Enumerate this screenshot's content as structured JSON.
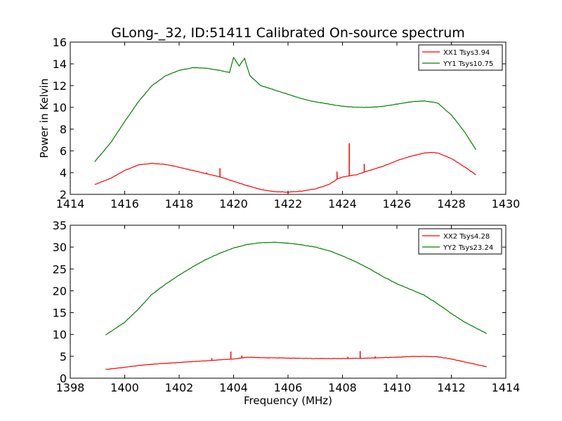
{
  "title": "GLong-_32, ID:51411 Calibrated On-source spectrum",
  "colors": {
    "xx": "#ff0000",
    "yy": "#008000"
  },
  "chart_data": [
    {
      "type": "line",
      "ylabel": "Power in Kelvin",
      "xlabel": "",
      "xlim": [
        1414,
        1430
      ],
      "ylim": [
        2,
        16
      ],
      "xticks": [
        "1414",
        "1416",
        "1418",
        "1420",
        "1422",
        "1424",
        "1426",
        "1428",
        "1430"
      ],
      "yticks": [
        "2",
        "4",
        "6",
        "8",
        "10",
        "12",
        "14",
        "16"
      ],
      "legend_position": "top-right",
      "series": [
        {
          "name": "XX1 Tsys3.94",
          "color": "#ff0000",
          "x": [
            1414.9,
            1415.5,
            1416.0,
            1416.5,
            1417.0,
            1417.5,
            1418.0,
            1418.5,
            1419.0,
            1419.5,
            1420.0,
            1420.5,
            1421.0,
            1421.5,
            1422.0,
            1422.5,
            1423.0,
            1423.5,
            1423.8,
            1424.0,
            1424.5,
            1425.0,
            1425.5,
            1426.0,
            1426.5,
            1427.0,
            1427.3,
            1427.5,
            1428.0,
            1428.5,
            1428.9
          ],
          "y": [
            2.9,
            3.5,
            4.2,
            4.7,
            4.85,
            4.75,
            4.5,
            4.2,
            3.9,
            3.6,
            3.2,
            2.8,
            2.45,
            2.25,
            2.2,
            2.3,
            2.5,
            2.9,
            3.4,
            3.6,
            3.8,
            4.2,
            4.6,
            5.1,
            5.5,
            5.8,
            5.85,
            5.8,
            5.3,
            4.5,
            3.8
          ],
          "spikes": [
            {
              "x": 1419.0,
              "y": 4.0
            },
            {
              "x": 1419.5,
              "y": 4.4
            },
            {
              "x": 1420.0,
              "y": 3.2
            },
            {
              "x": 1423.8,
              "y": 4.1
            },
            {
              "x": 1424.25,
              "y": 6.7
            },
            {
              "x": 1424.8,
              "y": 4.8
            }
          ]
        },
        {
          "name": "YY1 Tsys10.75",
          "color": "#008000",
          "x": [
            1414.9,
            1415.5,
            1416.0,
            1416.5,
            1417.0,
            1417.5,
            1418.0,
            1418.5,
            1419.0,
            1419.5,
            1419.85,
            1420.0,
            1420.2,
            1420.4,
            1420.6,
            1421.0,
            1421.5,
            1422.0,
            1422.5,
            1423.0,
            1423.5,
            1424.0,
            1424.5,
            1425.0,
            1425.5,
            1426.0,
            1426.5,
            1427.0,
            1427.5,
            1428.0,
            1428.5,
            1428.9
          ],
          "y": [
            5.0,
            6.8,
            8.7,
            10.5,
            12.0,
            12.9,
            13.4,
            13.65,
            13.6,
            13.4,
            13.2,
            14.6,
            13.8,
            14.5,
            12.9,
            12.0,
            11.6,
            11.2,
            10.8,
            10.5,
            10.3,
            10.1,
            10.0,
            10.0,
            10.1,
            10.3,
            10.5,
            10.6,
            10.4,
            9.3,
            7.7,
            6.1
          ]
        }
      ]
    },
    {
      "type": "line",
      "xlabel": "Frequency (MHz)",
      "ylabel": "",
      "xlim": [
        1398,
        1414
      ],
      "ylim": [
        0,
        35
      ],
      "xticks": [
        "1398",
        "1400",
        "1402",
        "1404",
        "1406",
        "1408",
        "1410",
        "1412",
        "1414"
      ],
      "yticks": [
        "0",
        "5",
        "10",
        "15",
        "20",
        "25",
        "30",
        "35"
      ],
      "legend_position": "top-right",
      "series": [
        {
          "name": "XX2 Tsys4.28",
          "color": "#ff0000",
          "x": [
            1399.3,
            1400.0,
            1400.5,
            1401.0,
            1401.5,
            1402.0,
            1402.5,
            1403.0,
            1403.5,
            1404.0,
            1404.5,
            1405.0,
            1405.5,
            1406.0,
            1406.5,
            1407.0,
            1407.5,
            1408.0,
            1408.5,
            1409.0,
            1409.5,
            1410.0,
            1410.5,
            1411.0,
            1411.5,
            1412.0,
            1412.5,
            1413.3
          ],
          "y": [
            2.0,
            2.5,
            2.9,
            3.2,
            3.4,
            3.6,
            3.8,
            4.0,
            4.2,
            4.4,
            4.8,
            4.7,
            4.65,
            4.6,
            4.55,
            4.5,
            4.5,
            4.5,
            4.55,
            4.6,
            4.7,
            4.8,
            4.95,
            5.0,
            4.9,
            4.4,
            3.7,
            2.6
          ],
          "spikes": [
            {
              "x": 1403.2,
              "y": 4.6
            },
            {
              "x": 1403.9,
              "y": 6.1
            },
            {
              "x": 1404.3,
              "y": 5.2
            },
            {
              "x": 1408.2,
              "y": 4.9
            },
            {
              "x": 1408.65,
              "y": 6.2
            },
            {
              "x": 1409.2,
              "y": 5.0
            }
          ]
        },
        {
          "name": "YY2 Tsys23.24",
          "color": "#008000",
          "x": [
            1399.3,
            1400.0,
            1400.5,
            1401.0,
            1401.5,
            1402.0,
            1402.5,
            1403.0,
            1403.5,
            1404.0,
            1404.5,
            1405.0,
            1405.5,
            1406.0,
            1406.5,
            1407.0,
            1407.5,
            1408.0,
            1408.5,
            1409.0,
            1409.5,
            1410.0,
            1410.5,
            1411.0,
            1411.5,
            1412.0,
            1412.5,
            1413.3
          ],
          "y": [
            9.9,
            12.8,
            15.8,
            19.2,
            21.5,
            23.6,
            25.5,
            27.2,
            28.6,
            29.8,
            30.6,
            31.0,
            31.1,
            30.9,
            30.5,
            30.0,
            29.2,
            28.0,
            26.6,
            25.0,
            23.2,
            21.6,
            20.3,
            19.0,
            17.0,
            14.8,
            12.8,
            10.2
          ]
        }
      ]
    }
  ]
}
